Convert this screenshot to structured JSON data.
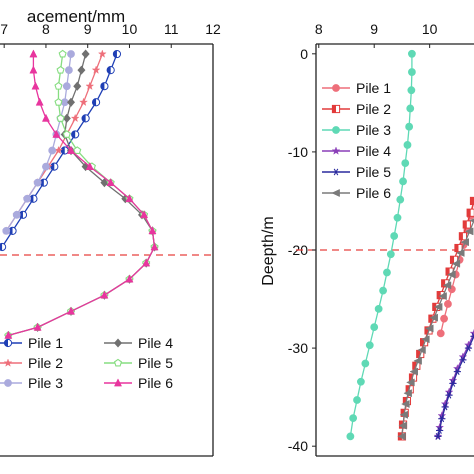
{
  "chart_data": [
    {
      "type": "line",
      "xlabel": "acement/mm",
      "x_ticks": [
        7,
        8,
        9,
        10,
        11,
        12
      ],
      "xlim": [
        6.9,
        12
      ],
      "ylim": [
        -40,
        1
      ],
      "grid": false,
      "reference_line": {
        "y": -20,
        "color": "#e8413d",
        "style": "dashed"
      },
      "legend_location": "bottom",
      "series": [
        {
          "name": "Pile 1",
          "color": "#1f3fb5",
          "marker": "left-half-filled circle",
          "x": [
            9.7,
            9.55,
            9.4,
            9.2,
            8.95,
            8.7,
            8.45,
            8.2,
            7.95,
            7.7,
            7.45,
            7.2,
            6.95
          ],
          "y": [
            0,
            -1.6,
            -3.2,
            -4.8,
            -6.4,
            -8,
            -9.6,
            -11.2,
            -12.8,
            -14.4,
            -16,
            -17.6,
            -19.2
          ]
        },
        {
          "name": "Pile 2",
          "color": "#ee6f7a",
          "marker": "star",
          "x": [
            9.35,
            9.2,
            9.05,
            8.9,
            8.7,
            8.5,
            8.3,
            8.05,
            7.8,
            7.55,
            7.3,
            7.05
          ],
          "y": [
            0,
            -1.6,
            -3.2,
            -4.8,
            -6.4,
            -8,
            -9.6,
            -11.2,
            -12.8,
            -14.4,
            -16,
            -17.6
          ]
        },
        {
          "name": "Pile 3",
          "color": "#aaaadd",
          "marker": "circle",
          "x": [
            8.6,
            8.55,
            8.5,
            8.45,
            8.35,
            8.25,
            8.15,
            8.0,
            7.8,
            7.55,
            7.3,
            7.05
          ],
          "y": [
            0,
            -1.6,
            -3.2,
            -4.8,
            -6.4,
            -8,
            -9.6,
            -11.2,
            -12.8,
            -14.4,
            -16,
            -17.6
          ]
        },
        {
          "name": "Pile 4",
          "color": "#707070",
          "marker": "diamond",
          "x": [
            8.95,
            8.85,
            8.75,
            8.6,
            8.5,
            8.45,
            8.6,
            8.95,
            9.4,
            9.9,
            10.3,
            10.55,
            10.6,
            10.4,
            10.0,
            9.4,
            8.6,
            7.8,
            7.1
          ],
          "y": [
            0,
            -1.6,
            -3.2,
            -4.8,
            -6.4,
            -8,
            -9.6,
            -11.2,
            -12.8,
            -14.4,
            -16,
            -17.6,
            -19.2,
            -20.8,
            -22.4,
            -24,
            -25.6,
            -27.2,
            -28
          ]
        },
        {
          "name": "Pile 5",
          "color": "#86dd80",
          "marker": "open pentagon",
          "x": [
            8.4,
            8.35,
            8.3,
            8.3,
            8.35,
            8.5,
            8.75,
            9.1,
            9.55,
            10.0,
            10.35,
            10.55,
            10.6,
            10.4,
            10.0,
            9.4,
            8.6,
            7.8,
            7.1
          ],
          "y": [
            0,
            -1.6,
            -3.2,
            -4.8,
            -6.4,
            -8,
            -9.6,
            -11.2,
            -12.8,
            -14.4,
            -16,
            -17.6,
            -19.2,
            -20.8,
            -22.4,
            -24,
            -25.6,
            -27.2,
            -28
          ]
        },
        {
          "name": "Pile 6",
          "color": "#e8359e",
          "marker": "triangle",
          "x": [
            7.7,
            7.7,
            7.75,
            7.85,
            8.0,
            8.25,
            8.6,
            9.05,
            9.55,
            10.0,
            10.35,
            10.55,
            10.6,
            10.4,
            10.0,
            9.4,
            8.6,
            7.8,
            7.1
          ],
          "y": [
            0,
            -1.6,
            -3.2,
            -4.8,
            -6.4,
            -8,
            -9.6,
            -11.2,
            -12.8,
            -14.4,
            -16,
            -17.6,
            -19.2,
            -20.8,
            -22.4,
            -24,
            -25.6,
            -27.2,
            -28
          ]
        }
      ]
    },
    {
      "type": "line",
      "ylabel": "Deepth/m",
      "x_ticks": [
        8,
        9,
        10
      ],
      "y_ticks": [
        0,
        -10,
        -20,
        -30,
        -40
      ],
      "xlim": [
        7.95,
        10.8
      ],
      "ylim": [
        -41,
        1
      ],
      "grid": false,
      "reference_line": {
        "y": -20,
        "color": "#e8413d",
        "style": "dashed"
      },
      "legend_location": "top-left",
      "series": [
        {
          "name": "Pile 1",
          "color": "#ee6f7a",
          "marker": "circle",
          "x": [
            10.8,
            10.74,
            10.68,
            10.61,
            10.54,
            10.47,
            10.4,
            10.33,
            10.26,
            10.2
          ],
          "y": [
            -15,
            -16.5,
            -18,
            -19.5,
            -21,
            -22.5,
            -24,
            -25.5,
            -27,
            -28.5
          ]
        },
        {
          "name": "Pile 2",
          "color": "#e23b3b",
          "marker": "half-filled square",
          "x": [
            10.8,
            10.74,
            10.67,
            10.6,
            10.52,
            10.44,
            10.36,
            10.28,
            10.2,
            10.12,
            10.05,
            9.98,
            9.9,
            9.83,
            9.76,
            9.7,
            9.64,
            9.59,
            9.55,
            9.52,
            9.5
          ],
          "y": [
            -15,
            -16.2,
            -17.4,
            -18.6,
            -19.8,
            -21,
            -22.2,
            -23.4,
            -24.6,
            -25.8,
            -27,
            -28.2,
            -29.4,
            -30.6,
            -31.8,
            -33,
            -34.2,
            -35.4,
            -36.6,
            -37.8,
            -39
          ]
        },
        {
          "name": "Pile 3",
          "color": "#5fd9b5",
          "marker": "circle",
          "x": [
            9.68,
            9.68,
            9.67,
            9.65,
            9.63,
            9.6,
            9.56,
            9.52,
            9.47,
            9.42,
            9.36,
            9.3,
            9.23,
            9.16,
            9.08,
            9.0,
            8.92,
            8.84,
            8.76,
            8.69,
            8.62,
            8.57
          ],
          "y": [
            0,
            -1.86,
            -3.71,
            -5.57,
            -7.43,
            -9.29,
            -11.14,
            -13,
            -14.86,
            -16.71,
            -18.57,
            -20.43,
            -22.29,
            -24.14,
            -26,
            -27.86,
            -29.71,
            -31.57,
            -33.43,
            -35.29,
            -37.14,
            -39
          ]
        },
        {
          "name": "Pile 4",
          "color": "#8a3fb8",
          "marker": "star",
          "x": [
            10.8,
            10.7,
            10.6,
            10.5,
            10.42,
            10.35,
            10.28,
            10.22,
            10.18,
            10.15
          ],
          "y": [
            -28.5,
            -29.7,
            -30.9,
            -32.1,
            -33.3,
            -34.5,
            -35.7,
            -36.9,
            -38.1,
            -39
          ]
        },
        {
          "name": "Pile 5",
          "color": "#2a2a9e",
          "marker": "asterisk",
          "x": [
            10.8,
            10.7,
            10.6,
            10.5,
            10.42,
            10.35,
            10.28,
            10.22,
            10.18,
            10.15
          ],
          "y": [
            -28.8,
            -30,
            -31.2,
            -32.4,
            -33.6,
            -34.8,
            -36,
            -37.2,
            -38.4,
            -39
          ]
        },
        {
          "name": "Pile 6",
          "color": "#7a7a7a",
          "marker": "left triangle",
          "x": [
            10.8,
            10.72,
            10.64,
            10.56,
            10.48,
            10.4,
            10.32,
            10.24,
            10.16,
            10.08,
            10.0,
            9.93,
            9.86,
            9.79,
            9.72,
            9.66,
            9.61,
            9.57,
            9.54,
            9.52,
            9.5
          ],
          "y": [
            -17,
            -18.1,
            -19.2,
            -20.3,
            -21.4,
            -22.5,
            -23.6,
            -24.7,
            -25.8,
            -26.9,
            -28,
            -29.1,
            -30.2,
            -31.3,
            -32.4,
            -33.5,
            -34.6,
            -35.7,
            -36.8,
            -37.9,
            -39
          ]
        }
      ]
    }
  ]
}
